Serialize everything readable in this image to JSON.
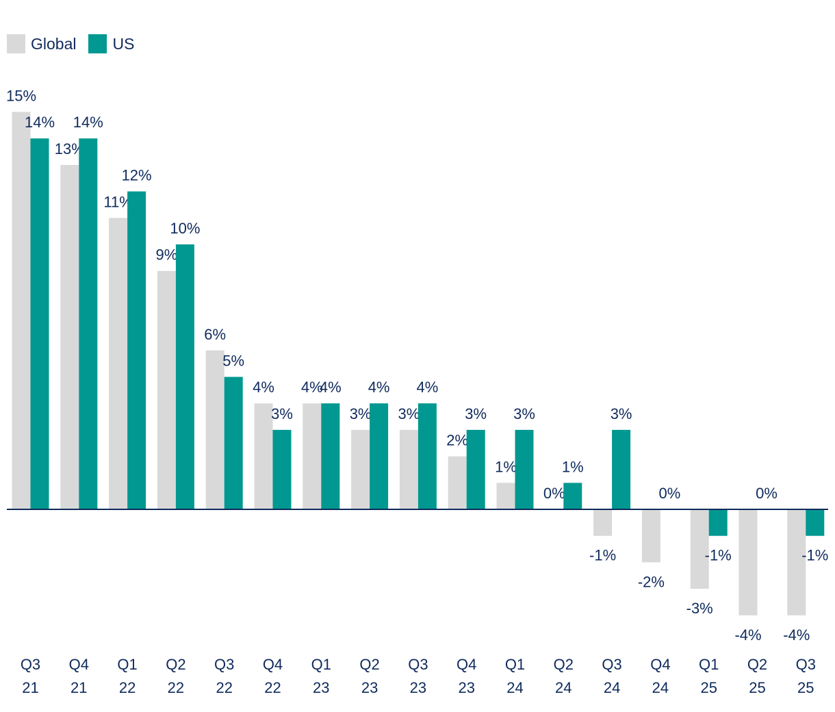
{
  "colors": {
    "global": "#d9d9d9",
    "us": "#009890",
    "text": "#0f2a5c",
    "axis": "#0f2a5c"
  },
  "legend": {
    "global_label": "Global",
    "us_label": "US"
  },
  "chart_data": {
    "type": "bar",
    "title": "",
    "xlabel": "",
    "ylabel": "",
    "ylim": [
      -4,
      15
    ],
    "grid": false,
    "legend_position": "top-left",
    "categories": [
      [
        "Q3",
        "21"
      ],
      [
        "Q4",
        "21"
      ],
      [
        "Q1",
        "22"
      ],
      [
        "Q2",
        "22"
      ],
      [
        "Q3",
        "22"
      ],
      [
        "Q4",
        "22"
      ],
      [
        "Q1",
        "23"
      ],
      [
        "Q2",
        "23"
      ],
      [
        "Q3",
        "23"
      ],
      [
        "Q4",
        "23"
      ],
      [
        "Q1",
        "24"
      ],
      [
        "Q2",
        "24"
      ],
      [
        "Q3",
        "24"
      ],
      [
        "Q4",
        "24"
      ],
      [
        "Q1",
        "25"
      ],
      [
        "Q2",
        "25"
      ],
      [
        "Q3",
        "25"
      ]
    ],
    "series": [
      {
        "name": "Global",
        "values": [
          15,
          13,
          11,
          9,
          6,
          4,
          4,
          3,
          3,
          2,
          1,
          0,
          -1,
          -2,
          -3,
          -4,
          -4
        ]
      },
      {
        "name": "US",
        "values": [
          14,
          14,
          12,
          10,
          5,
          3,
          4,
          4,
          4,
          3,
          3,
          1,
          3,
          0,
          -1,
          0,
          -1
        ]
      }
    ],
    "value_suffix": "%"
  }
}
